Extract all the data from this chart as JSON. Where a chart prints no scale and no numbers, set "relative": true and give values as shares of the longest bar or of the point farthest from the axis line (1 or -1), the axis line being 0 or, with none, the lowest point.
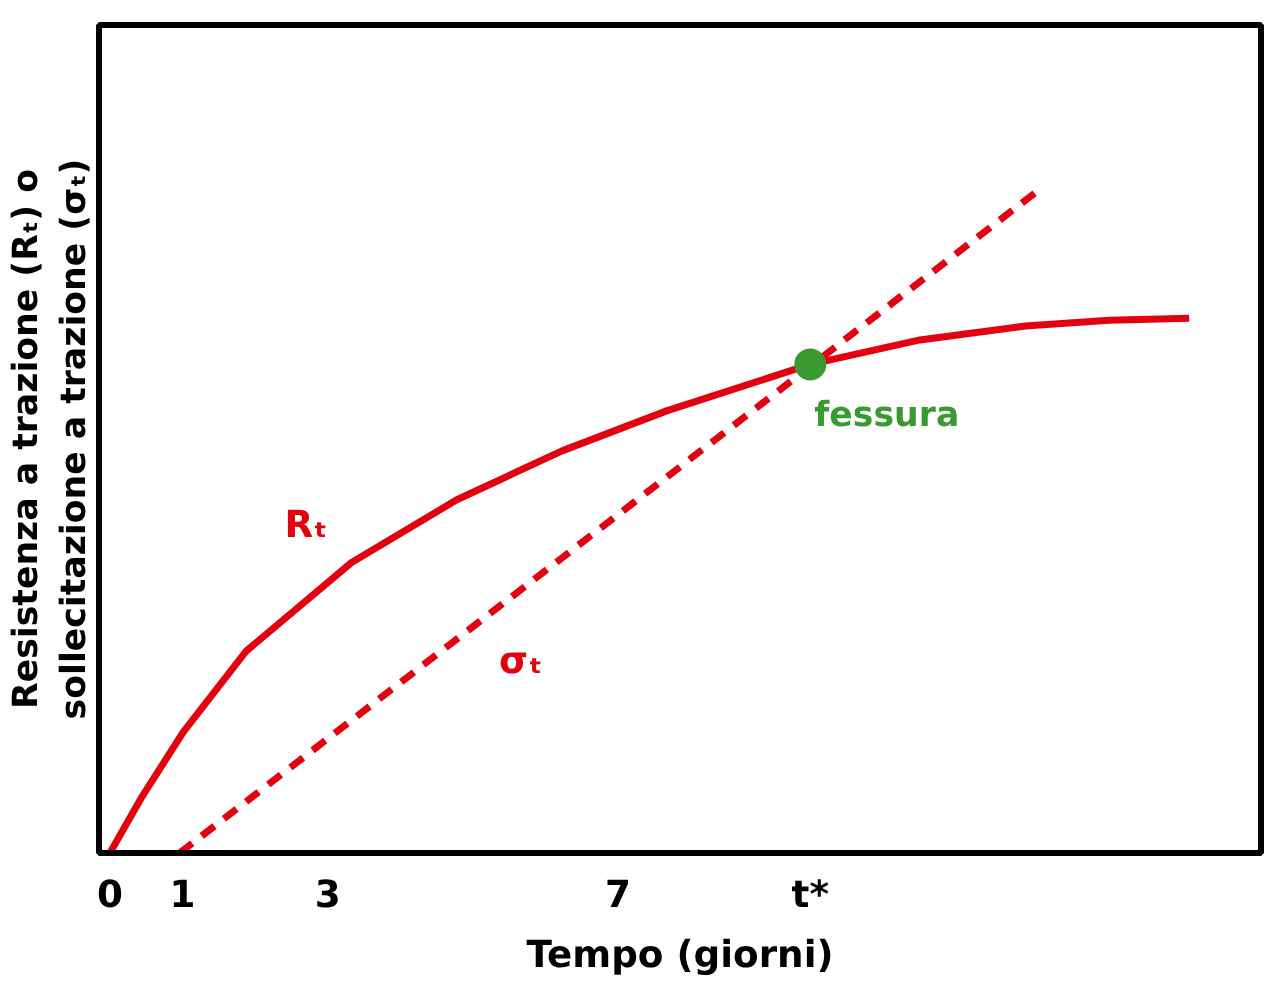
{
  "chart_data": {
    "type": "line",
    "xlabel": "Tempo (giorni)",
    "ylabel": "Resistenza a trazione (Rₜ) o\nsollecitazione a trazione (σₜ)",
    "relative": true,
    "xlim": [
      -0.15,
      15.86
    ],
    "xticks": [
      0,
      1,
      3,
      7,
      {
        "value": 9.65,
        "label": "t*"
      }
    ],
    "tick_labels": "x",
    "grid": false,
    "marker": "none",
    "series": [
      {
        "name": "Rₜ",
        "color": "#e3000f",
        "line_style": "solid",
        "x": [
          0,
          0.43,
          1.01,
          1.88,
          3.33,
          4.78,
          6.23,
          7.68,
          9.65,
          11.16,
          12.61,
          13.77,
          14.87
        ],
        "values": [
          0,
          0.083,
          0.183,
          0.306,
          0.44,
          0.535,
          0.609,
          0.67,
          0.74,
          0.777,
          0.798,
          0.807,
          0.81
        ]
      },
      {
        "name": "σₜ",
        "color": "#e3000f",
        "line_style": "dashed",
        "x": [
          0.96,
          12.75
        ],
        "values": [
          0,
          1
        ]
      },
      {
        "name": "fessura",
        "type": "scatter",
        "marker": "circle",
        "color": "#3a9a32",
        "x": [
          9.65
        ],
        "values": [
          0.74
        ]
      }
    ]
  }
}
